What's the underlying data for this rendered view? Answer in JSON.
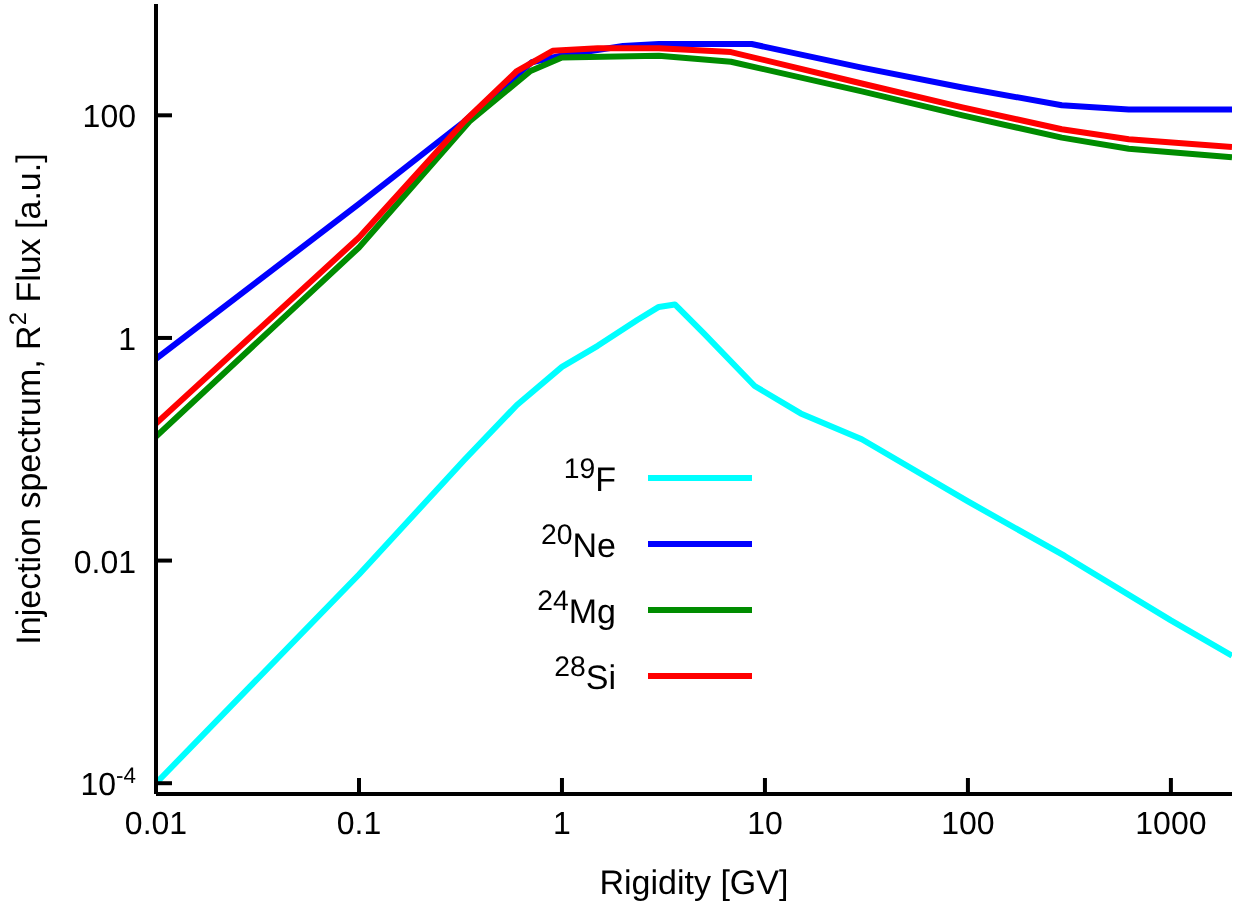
{
  "chart_data": {
    "type": "line",
    "xlabel": "Rigidity [GV]",
    "ylabel": "Injection spectrum, R$^{2}$ Flux [a.u.]",
    "log": "xy",
    "grid": false,
    "legend": "bottom",
    "marker": "none",
    "line_style": "solid",
    "xlim": [
      0.01,
      2000
    ],
    "ylim": [
      8e-05,
      1000
    ],
    "xticks": [
      0.01,
      0.1,
      1,
      10,
      100,
      1000
    ],
    "yticks": [
      {
        "value": 0.0001,
        "label": "10$^{-4}$"
      },
      0.01,
      1,
      100
    ],
    "series": [
      {
        "name": "$^{19}$F",
        "color": "#00ffff",
        "x": [
          0.01,
          0.1,
          0.33,
          0.6,
          1,
          1.5,
          2.35,
          3,
          3.6,
          5,
          8.9,
          15,
          30,
          100,
          300,
          1000,
          2000
        ],
        "values": [
          0.0001,
          0.0075,
          0.08,
          0.25,
          0.55,
          0.85,
          1.45,
          1.9,
          2.0,
          1.1,
          0.37,
          0.21,
          0.123,
          0.034,
          0.011,
          0.0029,
          0.0014
        ]
      },
      {
        "name": "$^{20}$Ne",
        "color": "#0000ff",
        "x": [
          0.01,
          0.1,
          0.33,
          0.71,
          1,
          2,
          3,
          8.6,
          30,
          94,
          290,
          620,
          2000
        ],
        "values": [
          0.65,
          16,
          88,
          300,
          345,
          420,
          437,
          437,
          268,
          178,
          123,
          113,
          113
        ]
      },
      {
        "name": "$^{24}$Mg",
        "color": "#008c00",
        "x": [
          0.01,
          0.1,
          0.35,
          0.7,
          1,
          3,
          6.8,
          30,
          94,
          290,
          620,
          2000
        ],
        "values": [
          0.13,
          6.5,
          88,
          250,
          330,
          343,
          303,
          164,
          100,
          63,
          50,
          42
        ]
      },
      {
        "name": "$^{28}$Si",
        "color": "#ff0000",
        "x": [
          0.01,
          0.1,
          0.33,
          0.6,
          0.9,
          1.5,
          3,
          6.8,
          30,
          94,
          290,
          620,
          2000
        ],
        "values": [
          0.17,
          8,
          88,
          250,
          380,
          400,
          400,
          370,
          193,
          118,
          75,
          61,
          52
        ]
      }
    ]
  }
}
